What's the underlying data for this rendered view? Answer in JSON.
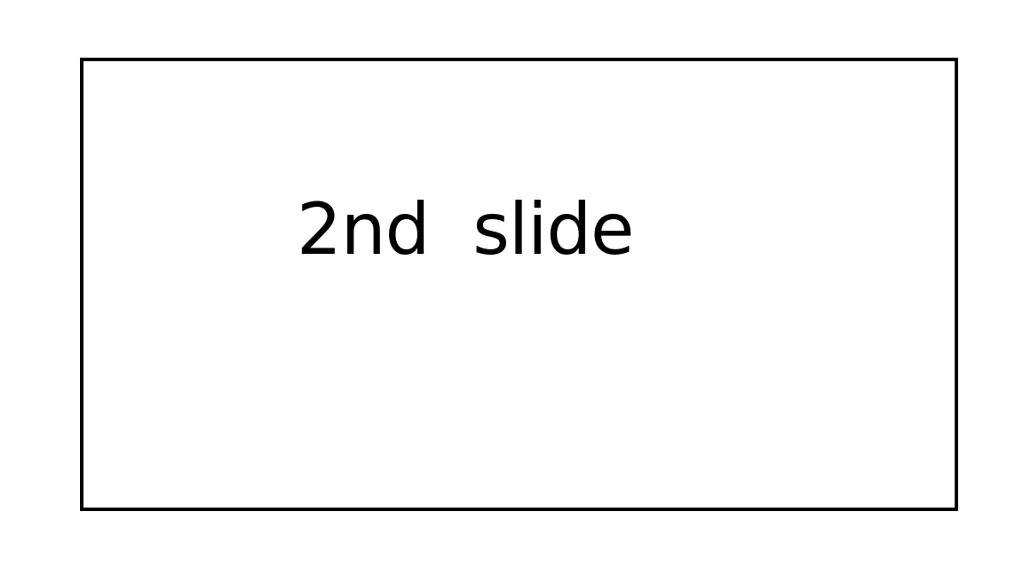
{
  "slide": {
    "text": "2nd  slide"
  },
  "colors": {
    "background": "#ffffff",
    "border": "#000000",
    "text": "#000000"
  }
}
